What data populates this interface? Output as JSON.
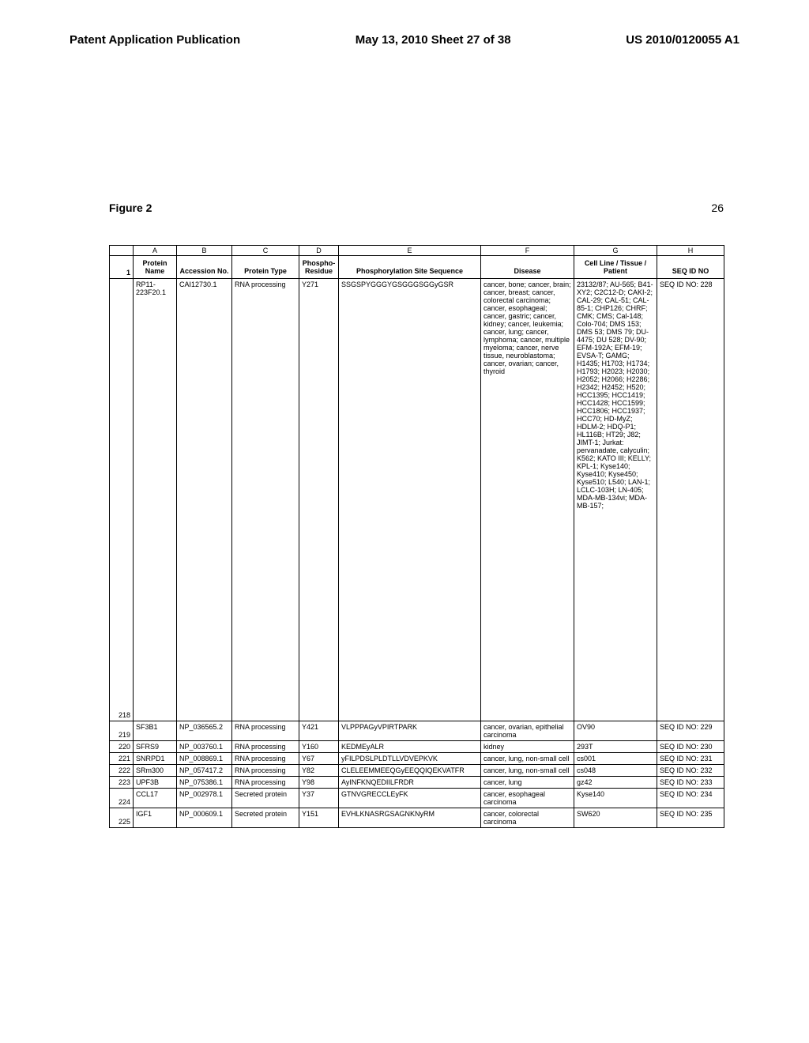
{
  "header": {
    "left": "Patent Application Publication",
    "center": "May 13, 2010  Sheet 27 of 38",
    "right": "US 2010/0120055 A1"
  },
  "figure_label": "Figure 2",
  "page_num": "26",
  "col_letters": [
    "",
    "A",
    "B",
    "C",
    "D",
    "E",
    "F",
    "G",
    "H"
  ],
  "columns": [
    "",
    "Protein Name",
    "Accession No.",
    "Protein Type",
    "Phospho-Residue",
    "Phosphorylation Site Sequence",
    "Disease",
    "Cell Line / Tissue / Patient",
    "SEQ ID NO"
  ],
  "header_rownum": "1",
  "rows": [
    {
      "n": "218",
      "a": "RP11-223F20.1",
      "b": "CAI12730.1",
      "c": "RNA processing",
      "d": "Y271",
      "e": "SSGSPYGGGYGSGGGSGGyGSR",
      "f": "cancer, bone; cancer, brain; cancer, breast; cancer, colorectal carcinoma; cancer, esophageal; cancer, gastric; cancer, kidney; cancer, leukemia; cancer, lung; cancer, lymphoma; cancer, multiple myeloma; cancer, nerve tissue, neuroblastoma; cancer, ovarian; cancer, thyroid",
      "g": "23132/87; AU-565; B41-XY2; C2C12-D; CAKI-2; CAL-29; CAL-51; CAL-85-1; CHP126; CHRF; CMK; CMS; Cal-148; Colo-704; DMS 153; DMS 53; DMS 79; DU-4475; DU 528; DV-90; EFM-192A; EFM-19; EVSA-T; GAMG; H1435; H1703; H1734; H1793; H2023; H2030; H2052; H2066; H2286; H2342; H2452; H520; HCC1395; HCC1419; HCC1428; HCC1599; HCC1806; HCC1937; HCC70; HD-MyZ; HDLM-2; HDQ-P1; HL116B; HT29; J82; JIMT-1; Jurkat: pervanadate, calyculin; K562; KATO III; KELLY; KPL-1; Kyse140; Kyse410; Kyse450; Kyse510; L540; LAN-1; LCLC-103H; LN-405; MDA-MB-134vi; MDA-MB-157;",
      "h": "SEQ ID NO: 228",
      "big": true
    },
    {
      "n": "219",
      "a": "SF3B1",
      "b": "NP_036565.2",
      "c": "RNA processing",
      "d": "Y421",
      "e": "VLPPPAGyVPIRTPARK",
      "f": "cancer, ovarian, epithelial carcinoma",
      "g": "OV90",
      "h": "SEQ ID NO: 229"
    },
    {
      "n": "220",
      "a": "SFRS9",
      "b": "NP_003760.1",
      "c": "RNA processing",
      "d": "Y160",
      "e": "KEDMEyALR",
      "f": "kidney",
      "g": "293T",
      "h": "SEQ ID NO: 230"
    },
    {
      "n": "221",
      "a": "SNRPD1",
      "b": "NP_008869.1",
      "c": "RNA processing",
      "d": "Y67",
      "e": "yFILPDSLPLDTLLVDVEPKVK",
      "f": "cancer, lung, non-small cell",
      "g": "cs001",
      "h": "SEQ ID NO: 231"
    },
    {
      "n": "222",
      "a": "SRm300",
      "b": "NP_057417.2",
      "c": "RNA processing",
      "d": "Y82",
      "e": "CLELEEMMEEQGyEEQQIQEKVATFR",
      "f": "cancer, lung, non-small cell",
      "g": "cs048",
      "h": "SEQ ID NO: 232"
    },
    {
      "n": "223",
      "a": "UPF3B",
      "b": "NP_075386.1",
      "c": "RNA processing",
      "d": "Y98",
      "e": "AyINFKNQEDIILFRDR",
      "f": "cancer, lung",
      "g": "gz42",
      "h": "SEQ ID NO: 233"
    },
    {
      "n": "224",
      "a": "CCL17",
      "b": "NP_002978.1",
      "c": "Secreted protein",
      "d": "Y37",
      "e": "GTNVGRECCLEyFK",
      "f": "cancer, esophageal carcinoma",
      "g": "Kyse140",
      "h": "SEQ ID NO: 234"
    },
    {
      "n": "225",
      "a": "IGF1",
      "b": "NP_000609.1",
      "c": "Secreted protein",
      "d": "Y151",
      "e": "EVHLKNASRGSAGNKNyRM",
      "f": "cancer, colorectal carcinoma",
      "g": "SW620",
      "h": "SEQ ID NO: 235"
    }
  ]
}
